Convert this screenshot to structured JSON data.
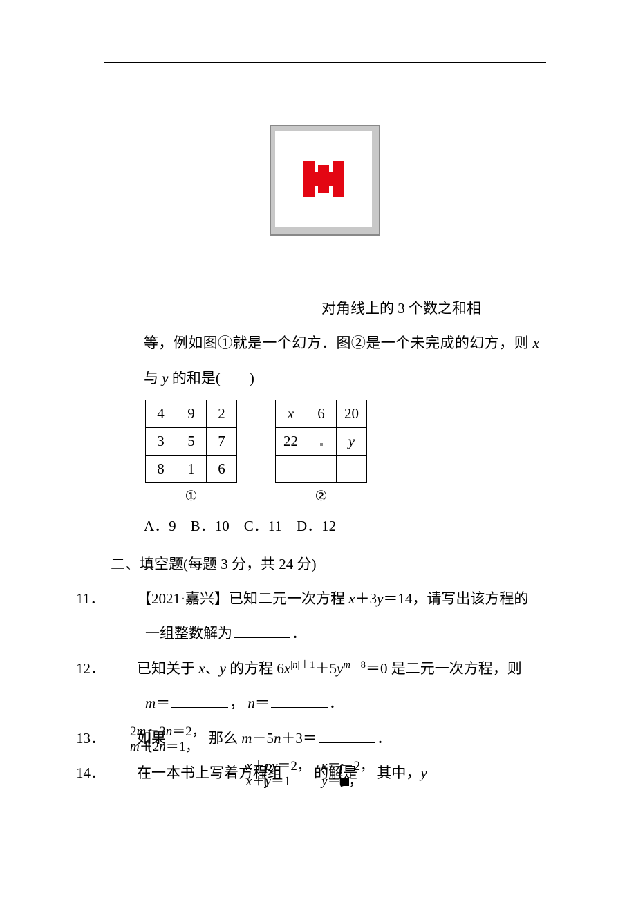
{
  "colors": {
    "text": "#000000",
    "background": "#ffffff",
    "red": "#e30613",
    "grey": "#c8c8c8",
    "border": "#888888"
  },
  "fontsize_body": 21,
  "line_height": 2.4,
  "lead_text": "对角线上的 3 个数之和相",
  "cont_text": "等，例如图①就是一个幻方．图②是一个未完成的幻方，则 ",
  "cont_text_tail": "与 ",
  "cont_text_end": " 的和是(　　)",
  "x_var": "x",
  "y_var": "y",
  "magic1": {
    "rows": [
      [
        "4",
        "9",
        "2"
      ],
      [
        "3",
        "5",
        "7"
      ],
      [
        "8",
        "1",
        "6"
      ]
    ],
    "caption": "①"
  },
  "magic2": {
    "rows": [
      [
        "x",
        "6",
        "20"
      ],
      [
        "22",
        "·",
        "y"
      ],
      [
        "",
        "",
        ""
      ]
    ],
    "caption": "②",
    "italic_cells": [
      [
        0,
        0
      ],
      [
        1,
        2
      ]
    ]
  },
  "options_line": {
    "A": "9",
    "B": "10",
    "C": "11",
    "D": "12",
    "A_label": "A．",
    "B_label": "B．",
    "C_label": "C．",
    "D_label": "D．"
  },
  "section2": "二、填空题(每题 3 分，共 24 分)",
  "q11": {
    "num": "11．",
    "pre": "【2021·嘉兴】已知二元一次方程 ",
    "eq_lhs1": "x",
    "eq_mid": "＋3",
    "eq_lhs2": "y",
    "eq_rhs": "＝14",
    "post": "，请写出该方程的",
    "line2": "一组整数解为",
    "period": "．"
  },
  "q12": {
    "num": "12．",
    "pre": "已知关于 ",
    "xy_pair_x": "x",
    "sep": "、",
    "xy_pair_y": "y",
    "mid1": " 的方程 6",
    "x": "x",
    "exp1_open": "|",
    "exp1_n": "n",
    "exp1_close": "|＋1",
    "plus": "＋5",
    "y": "y",
    "exp2_m": "m",
    "exp2_tail": "－8",
    "eq0": "＝0 是二元一次方程，则",
    "line2_m": "m",
    "line2_eq1": "＝",
    "comma": "，",
    "line2_n": "n",
    "line2_eq2": "＝",
    "period": "．"
  },
  "q13": {
    "num": "13．",
    "pre": "如果",
    "sys_l1_a": "2",
    "sys_l1_m": "m",
    "sys_l1_b": "－3",
    "sys_l1_n": "n",
    "sys_l1_c": "＝2，",
    "sys_l2_m": "m",
    "sys_l2_a": "＋2",
    "sys_l2_n": "n",
    "sys_l2_b": "＝1，",
    "mid": " 那么 ",
    "m": "m",
    "mid2": "－5",
    "n": "n",
    "mid3": "＋3＝",
    "period": "．"
  },
  "q14": {
    "num": "14．",
    "pre": "在一本书上写着方程组",
    "sys_l1_x": "x",
    "sys_l1_a": "＋",
    "sys_l1_p": "p",
    "sys_l1_y": "y",
    "sys_l1_b": "＝2，",
    "sys_l2_x": "x",
    "sys_l2_a": "＋",
    "sys_l2_y": "y",
    "sys_l2_b": "＝1",
    "mid": " 的解是",
    "sol_l1_x": "x",
    "sol_l1_a": "＝－2，",
    "sol_l2_y": "y",
    "sol_l2_a": "＝",
    "sol_l2_b": "，",
    "tail": " 其中，",
    "y": "y"
  }
}
